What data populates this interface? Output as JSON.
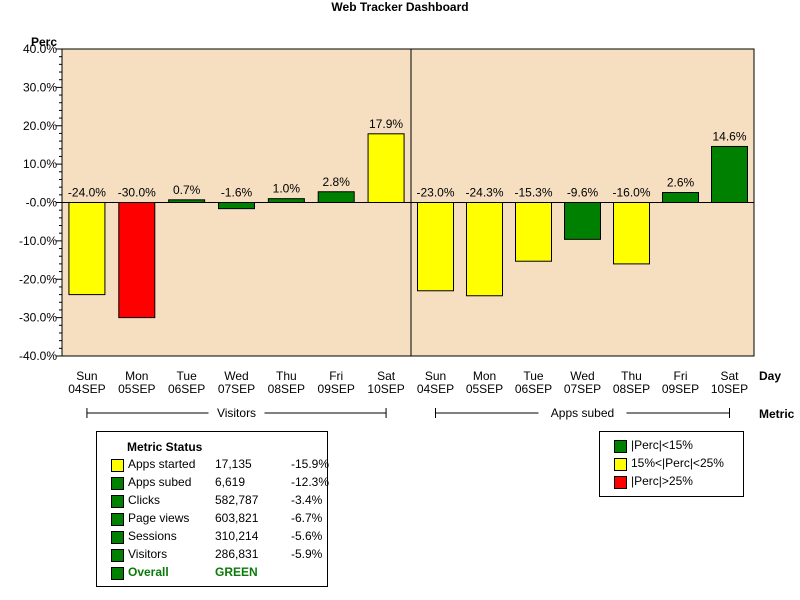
{
  "colors": {
    "green": "#008000",
    "yellow": "#ffff00",
    "red": "#ff0000",
    "plot_bg": "#f5dfc0"
  },
  "chart_data": {
    "type": "bar",
    "title": "Web Tracker Dashboard",
    "ylabel": "Perc",
    "xlabel": "Day",
    "group_axis_label": "Metric",
    "ylim": [
      -40,
      40
    ],
    "yticks": [
      "40.0%",
      "30.0%",
      "20.0%",
      "10.0%",
      "-0.0%",
      "-10.0%",
      "-20.0%",
      "-30.0%",
      "-40.0%"
    ],
    "categories": [
      {
        "day": "Sun",
        "date": "04SEP"
      },
      {
        "day": "Mon",
        "date": "05SEP"
      },
      {
        "day": "Tue",
        "date": "06SEP"
      },
      {
        "day": "Wed",
        "date": "07SEP"
      },
      {
        "day": "Thu",
        "date": "08SEP"
      },
      {
        "day": "Fri",
        "date": "09SEP"
      },
      {
        "day": "Sat",
        "date": "10SEP"
      }
    ],
    "panels": [
      {
        "name": "Visitors",
        "values": [
          -24.0,
          -30.0,
          0.7,
          -1.6,
          1.0,
          2.8,
          17.9
        ],
        "labels": [
          "-24.0%",
          "-30.0%",
          "0.7%",
          "-1.6%",
          "1.0%",
          "2.8%",
          "17.9%"
        ],
        "colors": [
          "yellow",
          "red",
          "green",
          "green",
          "green",
          "green",
          "yellow"
        ]
      },
      {
        "name": "Apps subed",
        "values": [
          -23.0,
          -24.3,
          -15.3,
          -9.6,
          -16.0,
          2.6,
          14.6
        ],
        "labels": [
          "-23.0%",
          "-24.3%",
          "-15.3%",
          "-9.6%",
          "-16.0%",
          "2.6%",
          "14.6%"
        ],
        "colors": [
          "yellow",
          "yellow",
          "yellow",
          "green",
          "yellow",
          "green",
          "green"
        ]
      }
    ]
  },
  "metric_status": {
    "title": "Metric Status",
    "rows": [
      {
        "name": "Apps started",
        "value": "17,135",
        "pct": "-15.9%",
        "color": "yellow"
      },
      {
        "name": "Apps subed",
        "value": "6,619",
        "pct": "-12.3%",
        "color": "green"
      },
      {
        "name": "Clicks",
        "value": "582,787",
        "pct": "-3.4%",
        "color": "green"
      },
      {
        "name": "Page views",
        "value": "603,821",
        "pct": "-6.7%",
        "color": "green"
      },
      {
        "name": "Sessions",
        "value": "310,214",
        "pct": "-5.6%",
        "color": "green"
      },
      {
        "name": "Visitors",
        "value": "286,831",
        "pct": "-5.9%",
        "color": "green"
      }
    ],
    "overall": {
      "name": "Overall",
      "value": "GREEN",
      "color": "green"
    }
  },
  "legend": [
    {
      "label": "|Perc|<15%",
      "color": "green"
    },
    {
      "label": "15%<|Perc|<25%",
      "color": "yellow"
    },
    {
      "label": "|Perc|>25%",
      "color": "red"
    }
  ]
}
